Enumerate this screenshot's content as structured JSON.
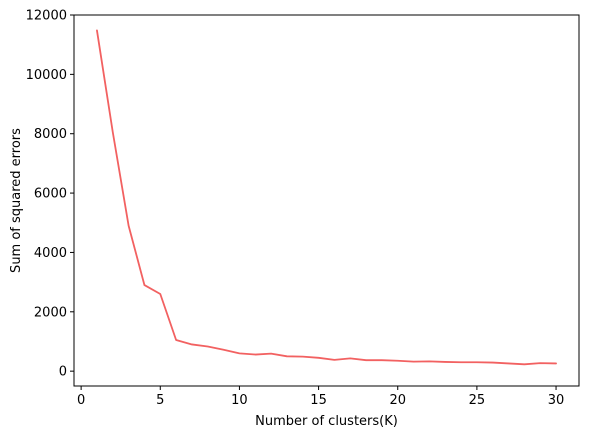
{
  "chart_data": {
    "type": "line",
    "title": "",
    "xlabel": "Number of clusters(K)",
    "ylabel": "Sum of squared errors",
    "xlim": [
      -0.45,
      31.45
    ],
    "ylim": [
      -500,
      12000
    ],
    "xticks": [
      0,
      5,
      10,
      15,
      20,
      25,
      30
    ],
    "yticks": [
      0,
      2000,
      4000,
      6000,
      8000,
      10000,
      12000
    ],
    "grid": false,
    "legend": "none",
    "series": [
      {
        "color": "#f26161",
        "x": [
          1,
          2,
          3,
          4,
          5,
          6,
          7,
          8,
          9,
          10,
          11,
          12,
          13,
          14,
          15,
          16,
          17,
          18,
          19,
          20,
          21,
          22,
          23,
          24,
          25,
          26,
          27,
          28,
          29,
          30
        ],
        "y": [
          11480,
          8050,
          4900,
          2900,
          2600,
          1050,
          900,
          830,
          720,
          600,
          560,
          590,
          500,
          490,
          450,
          380,
          430,
          370,
          370,
          350,
          320,
          330,
          310,
          300,
          300,
          290,
          260,
          230,
          270,
          260
        ]
      }
    ]
  }
}
